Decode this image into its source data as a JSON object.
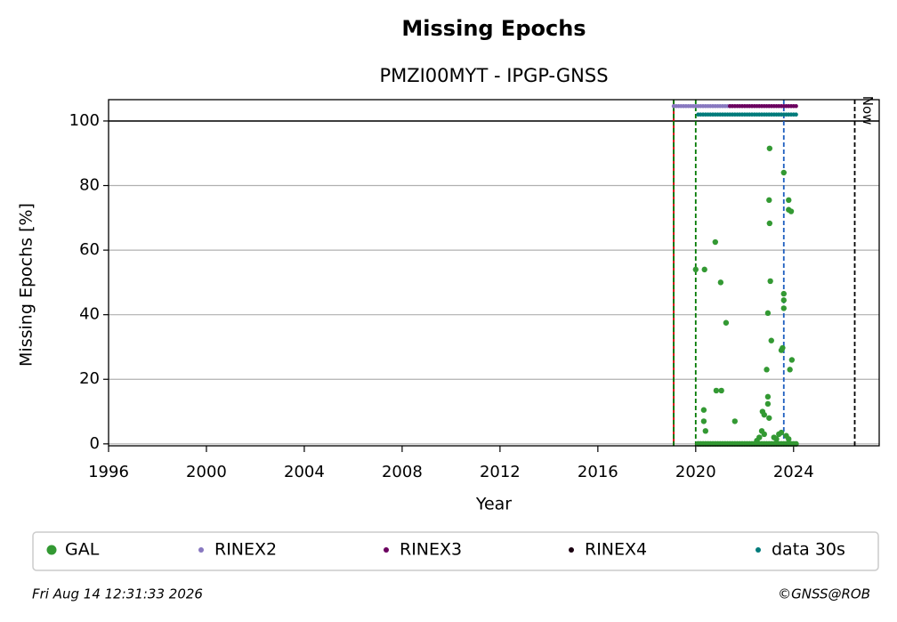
{
  "chart_data": {
    "type": "scatter",
    "title": "Missing Epochs",
    "subtitle": "PMZI00MYT - IPGP-GNSS",
    "x_label": "Year",
    "y_label": "Missing Epochs [%]",
    "xlim": [
      1996,
      2027.5
    ],
    "ylim": [
      -0.6,
      106.6
    ],
    "xticks": [
      1996,
      2000,
      2004,
      2008,
      2012,
      2016,
      2020,
      2024
    ],
    "yticks": [
      0,
      20,
      40,
      60,
      80,
      100
    ],
    "grid": true,
    "legend": "bottom",
    "series": [
      {
        "name": "GAL",
        "color": "#339933",
        "size": 3.2,
        "x": [
          2020.0,
          2020.36,
          2020.33,
          2020.33,
          2020.4,
          2020.8,
          2020.84,
          2021.05,
          2021.02,
          2021.24,
          2021.6,
          2023.02,
          2023.0,
          2023.02,
          2023.05,
          2022.95,
          2023.09,
          2022.9,
          2022.95,
          2022.95,
          2022.73,
          2022.8,
          2023.0,
          2023.6,
          2023.6,
          2023.6,
          2023.6,
          2023.5,
          2023.55,
          2023.8,
          2023.8,
          2023.9,
          2023.85,
          2023.93,
          2022.5,
          2022.6,
          2022.7,
          2022.8,
          2023.2,
          2023.3,
          2023.4,
          2023.5,
          2023.7,
          2023.8,
          2020.1,
          2020.2,
          2020.3,
          2020.4,
          2020.5,
          2020.6,
          2020.7,
          2020.8,
          2020.9,
          2021.0,
          2021.1,
          2021.2,
          2021.3,
          2021.4,
          2021.5,
          2021.6,
          2021.7,
          2021.8,
          2021.9,
          2022.0,
          2022.1,
          2022.2,
          2022.3,
          2022.4,
          2022.5,
          2022.6,
          2022.7,
          2022.8,
          2022.9,
          2023.0,
          2023.1,
          2023.2,
          2023.3,
          2023.4,
          2023.5,
          2023.6,
          2023.7,
          2023.8,
          2023.9,
          2024.0,
          2024.1
        ],
        "values": [
          54,
          54,
          10.5,
          7,
          4,
          62.5,
          16.5,
          16.5,
          50,
          37.5,
          7,
          91.5,
          75.5,
          68.3,
          50.4,
          40.5,
          32,
          23,
          14.6,
          12.4,
          10,
          9,
          8,
          84,
          46.5,
          44.5,
          42,
          29,
          29.7,
          72.5,
          75.5,
          72,
          23,
          26,
          1,
          2,
          4,
          3,
          2,
          1.5,
          3,
          3.5,
          2.5,
          1.5,
          0,
          0,
          0,
          0,
          0,
          0,
          0,
          0,
          0,
          0,
          0,
          0,
          0,
          0,
          0,
          0,
          0,
          0,
          0,
          0,
          0,
          0,
          0,
          0,
          0,
          0,
          0,
          0,
          0,
          0,
          0,
          0,
          0,
          0,
          0,
          0,
          0,
          0,
          0,
          0,
          0
        ]
      },
      {
        "name": "RINEX2",
        "color": "#8878c0",
        "size": 2.3,
        "x": [
          2019.1,
          2019.2,
          2019.3,
          2019.4,
          2019.5,
          2019.6,
          2019.7,
          2019.8,
          2019.9,
          2020.0,
          2020.1,
          2020.2,
          2020.3,
          2020.4,
          2020.5,
          2020.6,
          2020.7,
          2020.8,
          2020.9,
          2021.0,
          2021.1,
          2021.2,
          2021.3,
          2021.4
        ],
        "values": [
          104.6,
          104.6,
          104.6,
          104.6,
          104.6,
          104.6,
          104.6,
          104.6,
          104.6,
          104.6,
          104.6,
          104.6,
          104.6,
          104.6,
          104.6,
          104.6,
          104.6,
          104.6,
          104.6,
          104.6,
          104.6,
          104.6,
          104.6,
          104.6
        ]
      },
      {
        "name": "RINEX3",
        "color": "#6b005f",
        "size": 2.3,
        "x": [
          2021.4,
          2021.5,
          2021.6,
          2021.7,
          2021.8,
          2021.9,
          2022.0,
          2022.1,
          2022.2,
          2022.3,
          2022.4,
          2022.5,
          2022.6,
          2022.7,
          2022.8,
          2022.9,
          2023.0,
          2023.1,
          2023.2,
          2023.3,
          2023.4,
          2023.5,
          2023.6,
          2023.7,
          2023.8,
          2023.9,
          2024.0,
          2024.1
        ],
        "values": [
          104.6,
          104.6,
          104.6,
          104.6,
          104.6,
          104.6,
          104.6,
          104.6,
          104.6,
          104.6,
          104.6,
          104.6,
          104.6,
          104.6,
          104.6,
          104.6,
          104.6,
          104.6,
          104.6,
          104.6,
          104.6,
          104.6,
          104.6,
          104.6,
          104.6,
          104.6,
          104.6,
          104.6
        ]
      },
      {
        "name": "RINEX4",
        "color": "#1a0010",
        "size": 2.3,
        "x": [],
        "values": []
      },
      {
        "name": "data 30s",
        "color": "#007b7b",
        "size": 2.3,
        "x": [
          2020.1,
          2020.2,
          2020.3,
          2020.4,
          2020.5,
          2020.6,
          2020.7,
          2020.8,
          2020.9,
          2021.0,
          2021.1,
          2021.2,
          2021.3,
          2021.4,
          2021.5,
          2021.6,
          2021.7,
          2021.8,
          2021.9,
          2022.0,
          2022.1,
          2022.2,
          2022.3,
          2022.4,
          2022.5,
          2022.6,
          2022.7,
          2022.8,
          2022.9,
          2023.0,
          2023.1,
          2023.2,
          2023.3,
          2023.4,
          2023.5,
          2023.6,
          2023.7,
          2023.8,
          2023.9,
          2024.0,
          2024.1
        ],
        "values": [
          102,
          102,
          102,
          102,
          102,
          102,
          102,
          102,
          102,
          102,
          102,
          102,
          102,
          102,
          102,
          102,
          102,
          102,
          102,
          102,
          102,
          102,
          102,
          102,
          102,
          102,
          102,
          102,
          102,
          102,
          102,
          102,
          102,
          102,
          102,
          102,
          102,
          102,
          102,
          102,
          102
        ]
      }
    ],
    "hlines": [
      {
        "y": 100,
        "color": "#000000"
      }
    ],
    "vlines": [
      {
        "x": 2019.1,
        "color": "#d00000",
        "dash": false
      },
      {
        "x": 2019.1,
        "color": "#007a00",
        "dash": true
      },
      {
        "x": 2020.0,
        "color": "#007a00",
        "dash": true
      },
      {
        "x": 2023.6,
        "color": "#1f5fbf",
        "dash": true
      },
      {
        "x": 2026.5,
        "color": "#000000",
        "dash": true
      }
    ],
    "annotations": [
      {
        "text": "Now",
        "x": 2026.5,
        "y": 95
      }
    ],
    "footer_left": "Fri Aug 14 12:31:33 2026",
    "footer_right": "©GNSS@ROB"
  }
}
